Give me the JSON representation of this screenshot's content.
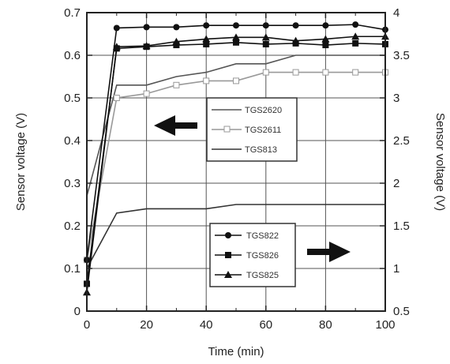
{
  "chart_data": {
    "type": "line",
    "xlabel": "Time (min)",
    "ylabel_left": "Sensor voltage (V)",
    "ylabel_right": "Sensor voltage (V)",
    "xlim": [
      0,
      100
    ],
    "ylim_left": [
      0,
      0.7
    ],
    "ylim_right": [
      0.5,
      4
    ],
    "x_ticks": [
      "0",
      "20",
      "40",
      "60",
      "80",
      "100"
    ],
    "y_ticks_left": [
      "0",
      "0.1",
      "0.2",
      "0.3",
      "0.4",
      "0.5",
      "0.6",
      "0.7"
    ],
    "y_ticks_right": [
      "0.5",
      "1",
      "1.5",
      "2",
      "2.5",
      "3",
      "3.5",
      "4"
    ],
    "grid": true,
    "x": [
      0,
      10,
      20,
      30,
      40,
      50,
      60,
      70,
      80,
      90,
      100
    ],
    "series": [
      {
        "name": "TGS2620",
        "axis": "left",
        "marker": "none",
        "color": "#555555",
        "values": [
          0.27,
          0.53,
          0.53,
          0.55,
          0.56,
          0.58,
          0.58,
          0.6,
          0.6,
          0.6,
          0.6
        ]
      },
      {
        "name": "TGS2611",
        "axis": "left",
        "marker": "open-square",
        "color": "#999999",
        "values": [
          0.12,
          0.5,
          0.51,
          0.53,
          0.54,
          0.54,
          0.56,
          0.56,
          0.56,
          0.56,
          0.56
        ]
      },
      {
        "name": "TGS813",
        "axis": "left",
        "marker": "none",
        "color": "#333333",
        "values": [
          0.1,
          0.23,
          0.24,
          0.24,
          0.24,
          0.25,
          0.25,
          0.25,
          0.25,
          0.25,
          0.25
        ]
      },
      {
        "name": "TGS822",
        "axis": "right",
        "marker": "circle",
        "color": "#111111",
        "values": [
          1.1,
          3.82,
          3.83,
          3.83,
          3.85,
          3.85,
          3.85,
          3.85,
          3.85,
          3.86,
          3.8
        ]
      },
      {
        "name": "TGS826",
        "axis": "right",
        "marker": "square",
        "color": "#111111",
        "values": [
          0.82,
          3.58,
          3.6,
          3.62,
          3.63,
          3.65,
          3.63,
          3.64,
          3.62,
          3.64,
          3.63
        ]
      },
      {
        "name": "TGS825",
        "axis": "right",
        "marker": "triangle",
        "color": "#111111",
        "values": [
          0.72,
          3.6,
          3.61,
          3.66,
          3.69,
          3.71,
          3.71,
          3.67,
          3.69,
          3.72,
          3.72
        ]
      }
    ],
    "legend_left": [
      "TGS2620",
      "TGS2611",
      "TGS813"
    ],
    "legend_right": [
      "TGS822",
      "TGS826",
      "TGS825"
    ],
    "arrows": [
      {
        "direction": "left",
        "meaning": "left axis"
      },
      {
        "direction": "right",
        "meaning": "right axis"
      }
    ]
  }
}
